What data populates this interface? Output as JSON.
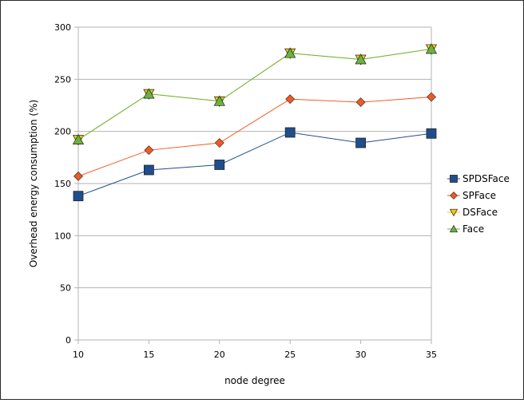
{
  "chart_data": {
    "type": "line",
    "title": "",
    "xlabel": "node degree",
    "ylabel": "Overhead energy consumption (%)",
    "x": [
      10,
      15,
      20,
      25,
      30,
      35
    ],
    "x_tick_labels": [
      "10",
      "15",
      "20",
      "25",
      "30",
      "35"
    ],
    "ylim": [
      0,
      300
    ],
    "y_ticks": [
      0,
      50,
      100,
      150,
      200,
      250,
      300
    ],
    "grid": "horizontal",
    "legend_position": "right",
    "series": [
      {
        "name": "SPDSFace",
        "values": [
          138,
          163,
          168,
          199,
          189,
          198
        ],
        "color": "#1f4e8c",
        "marker": "square"
      },
      {
        "name": "SPFace",
        "values": [
          157,
          182,
          189,
          231,
          228,
          233
        ],
        "color": "#ef5a24",
        "marker": "diamond"
      },
      {
        "name": "DSFace",
        "values": [
          192,
          236,
          229,
          275,
          269,
          279
        ],
        "color": "#f2c70d",
        "marker": "triangle-down"
      },
      {
        "name": "Face",
        "values": [
          192,
          236,
          229,
          275,
          269,
          279
        ],
        "color": "#6cb33f",
        "marker": "triangle-up"
      }
    ]
  }
}
